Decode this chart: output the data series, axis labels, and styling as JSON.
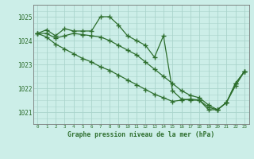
{
  "title": "Graphe pression niveau de la mer (hPa)",
  "bg_color": "#cceee8",
  "grid_color": "#aad4cc",
  "line_color": "#2d6e2d",
  "xlim": [
    -0.5,
    23.5
  ],
  "ylim": [
    1020.5,
    1025.5
  ],
  "yticks": [
    1021,
    1022,
    1023,
    1024,
    1025
  ],
  "xticks": [
    0,
    1,
    2,
    3,
    4,
    5,
    6,
    7,
    8,
    9,
    10,
    11,
    12,
    13,
    14,
    15,
    16,
    17,
    18,
    19,
    20,
    21,
    22,
    23
  ],
  "series1": {
    "x": [
      0,
      1,
      2,
      3,
      4,
      5,
      6,
      7,
      8,
      9,
      10,
      11,
      12,
      13,
      14,
      15,
      16,
      17,
      18,
      19,
      20,
      21,
      22,
      23
    ],
    "y": [
      1024.3,
      1024.45,
      1024.2,
      1024.5,
      1024.4,
      1024.4,
      1024.4,
      1025.0,
      1025.0,
      1024.65,
      1024.2,
      1024.0,
      1023.8,
      1023.3,
      1024.2,
      1021.9,
      1021.55,
      1021.5,
      1021.5,
      1021.1,
      1021.1,
      1021.4,
      1022.2,
      1022.7
    ]
  },
  "series2": {
    "x": [
      0,
      1,
      2,
      3,
      4,
      5,
      6,
      7,
      8,
      9,
      10,
      11,
      12,
      13,
      14,
      15,
      16,
      17,
      18,
      19,
      20,
      21,
      22,
      23
    ],
    "y": [
      1024.3,
      1024.3,
      1024.1,
      1024.2,
      1024.3,
      1024.25,
      1024.2,
      1024.15,
      1024.0,
      1023.8,
      1023.6,
      1023.4,
      1023.1,
      1022.8,
      1022.5,
      1022.2,
      1021.9,
      1021.7,
      1021.6,
      1021.3,
      1021.1,
      1021.4,
      1022.1,
      1022.7
    ]
  },
  "series3": {
    "x": [
      0,
      1,
      2,
      3,
      4,
      5,
      6,
      7,
      8,
      9,
      10,
      11,
      12,
      13,
      14,
      15,
      16,
      17,
      18,
      19,
      20,
      21,
      22,
      23
    ],
    "y": [
      1024.3,
      1024.15,
      1023.85,
      1023.65,
      1023.45,
      1023.25,
      1023.1,
      1022.9,
      1022.75,
      1022.55,
      1022.35,
      1022.15,
      1021.95,
      1021.75,
      1021.6,
      1021.45,
      1021.5,
      1021.55,
      1021.5,
      1021.2,
      1021.1,
      1021.4,
      1022.2,
      1022.7
    ]
  }
}
